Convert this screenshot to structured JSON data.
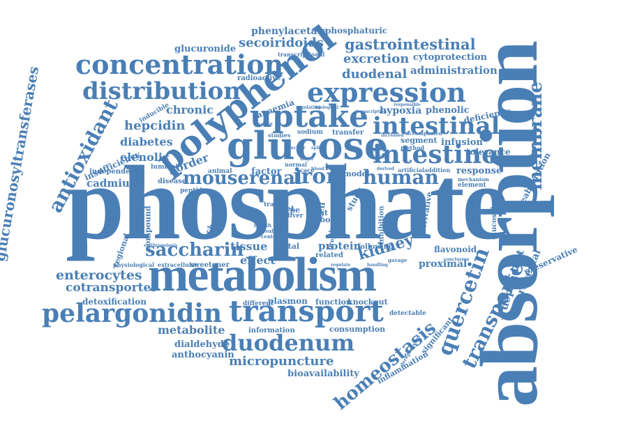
{
  "colors": {
    "word": "#4a7fb5",
    "background": "#ffffff"
  },
  "words": {
    "absorption": "absorption",
    "phosphate": "phosphate",
    "metabolism": "metabolism",
    "polyphenol": "polyphenol",
    "glucose": "glucose",
    "expression": "expression",
    "concentration": "concentration",
    "distribution": "distribution",
    "uptake": "uptake",
    "intestinal": "intestinal",
    "intestine": "intestine",
    "transport": "transport",
    "pelargonidin": "pelargonidin",
    "duodenum": "duodenum",
    "antioxidant": "antioxidant",
    "glucuronosyltransferases": "glucuronosyltransferases",
    "membrane": "membrane",
    "quercetin": "quercetin",
    "transporter": "transporter",
    "homeostasis": "homeostasis",
    "human": "human",
    "iron": "iron",
    "mouserenal": "mouserenal",
    "saccharin": "saccharin",
    "kidney": "kidney",
    "enterocytes": "enterocytes",
    "cotransporter": "cotransporter",
    "gastrointestinal": "gastrointestinal",
    "excretion": "excretion",
    "duodenal": "duodenal",
    "administration": "administration",
    "phenylacetate": "phenylacetate",
    "phosphaturic": "phosphaturic",
    "secoiridoids": "secoiridoids",
    "glucuronide": "glucuronide",
    "cytoprotection": "cytoprotection",
    "hepcidin": "hepcidin",
    "chronic": "chronic",
    "diabetes": "diabetes",
    "elenolic": "elenolic",
    "border": "border",
    "cadmium": "cadmium",
    "tissue": "tissue",
    "effect": "effect",
    "protein": "protein",
    "hypoxia": "hypoxia",
    "phenolic": "phenolic",
    "infusion": "infusion",
    "tolerance": "tolerance",
    "deficiency": "deficiency",
    "response": "response",
    "dependent": "dependent",
    "experimental": "experimental",
    "reabsorption": "reabsorption",
    "preservative": "preservative",
    "metabolite": "metabolite",
    "dialdehyde": "dialdehyde",
    "anthocyanin": "anthocyanin",
    "micropuncture": "micropuncture",
    "bioavailability": "bioavailability",
    "inflammation": "inflammation",
    "detoxification": "detoxification",
    "plasmon": "plasmon",
    "function": "function",
    "knockout": "knockout",
    "consumption": "consumption",
    "information": "information",
    "proximal": "proximal",
    "flavonoid": "flavonoid",
    "insufficiency": "insufficiency",
    "independent": "independent",
    "radioactive": "radioactive",
    "regional": "regional",
    "compound": "compound",
    "anaemia": "anaemia",
    "segment": "segment",
    "significant": "significant",
    "glucoside": "glucoside",
    "derivative": "derivative",
    "inhibition": "inhibition",
    "factor": "factor",
    "level": "level",
    "model": "model",
    "study": "study",
    "cell": "cell",
    "food": "food",
    "diet": "diet",
    "type": "type",
    "liver": "liver",
    "metal": "metal",
    "sweetener": "sweetener",
    "related": "related",
    "following": "following",
    "detectable": "detectable",
    "different": "different",
    "disease": "disease",
    "peptide": "peptide",
    "animal": "animal",
    "luminal": "luminal",
    "inducible": "inducible",
    "change": "change",
    "sodium": "sodium",
    "transfer": "transfer",
    "artificial": "artificial",
    "addition": "addition",
    "element": "element",
    "mechanism": "mechanism",
    "method": "method",
    "transcriptional": "transcriptional",
    "physiological": "physiological",
    "extracellular": "extracellular",
    "present": "present",
    "olive": "olive",
    "tract": "tract",
    "normal": "normal",
    "studies": "studies",
    "health": "health",
    "result": "result",
    "center": "center",
    "caco": "caco",
    "rat": "rat",
    "regulate": "regulate",
    "gavage": "gavage",
    "handling": "handling",
    "conclusion": "conclusion",
    "accompanied": "accompanied",
    "increased": "increased",
    "responsible": "responsible",
    "derepression": "derepression",
    "erythropoiesis": "erythropoiesis",
    "regulating": "regulating",
    "biological": "biological",
    "transcription": "transcription",
    "divalent": "divalent",
    "nuclear": "nuclear",
    "major": "major",
    "blood": "blood",
    "split": "split",
    "derived": "derived",
    "high": "high"
  }
}
